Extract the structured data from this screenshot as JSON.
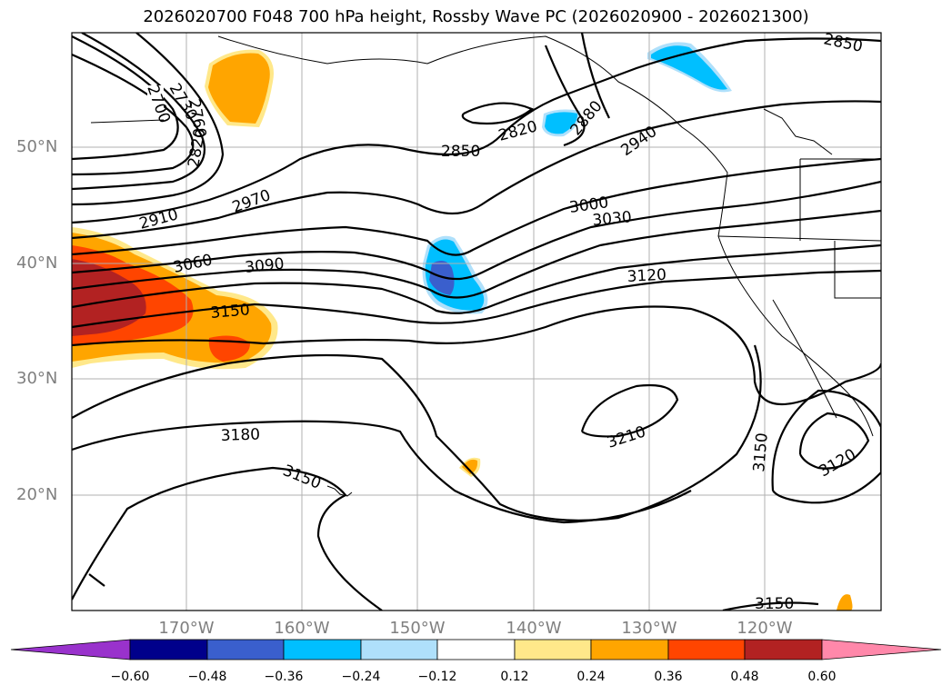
{
  "title": "2026020700 F048 700 hPa height, Rossby Wave PC (2026020900 - 2026021300)",
  "lat_labels": [
    "50°N",
    "40°N",
    "30°N",
    "20°N"
  ],
  "lon_labels": [
    "170°W",
    "160°W",
    "150°W",
    "140°W",
    "130°W",
    "120°W"
  ],
  "contour_labels": [
    "2700",
    "2730",
    "2760",
    "2820",
    "2850",
    "2820",
    "2880",
    "2940",
    "2850",
    "2910",
    "2970",
    "3000",
    "3030",
    "3060",
    "3090",
    "3120",
    "3150",
    "3180",
    "3210",
    "3150",
    "3120",
    "3150",
    "3150"
  ],
  "colorbar": {
    "ticks": [
      "−0.60",
      "−0.48",
      "−0.36",
      "−0.24",
      "−0.12",
      "0.12",
      "0.24",
      "0.36",
      "0.48",
      "0.60"
    ],
    "colors": [
      "#9932cc",
      "#00008b",
      "#3a5fcd",
      "#00bfff",
      "#afe0fb",
      "#ffffff",
      "#ffe88a",
      "#ffa500",
      "#ff4500",
      "#b22222",
      "#ff88aa"
    ]
  }
}
